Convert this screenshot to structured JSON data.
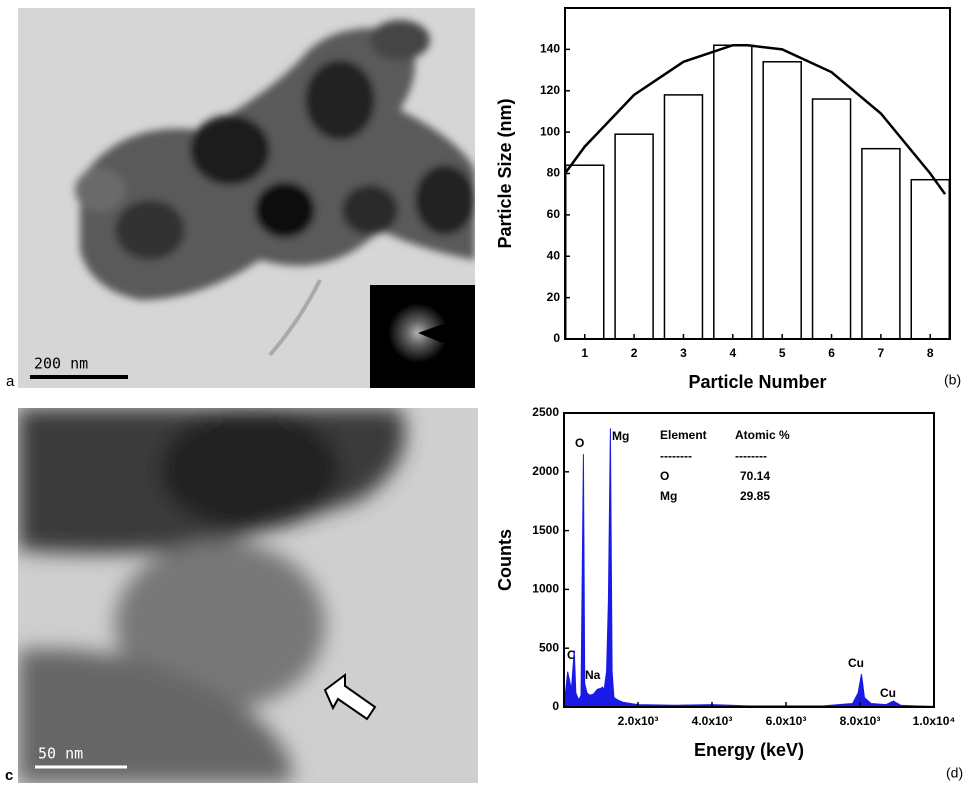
{
  "panels": [
    {
      "label": "a",
      "scale_bar": "200 nm"
    },
    {
      "label": "(b)"
    },
    {
      "label": "c",
      "scale_bar": "50 nm"
    },
    {
      "label": "(d)"
    }
  ],
  "chart_data": [
    {
      "type": "bar",
      "x_label": "Particle Number",
      "y_label": "Particle Size (nm)",
      "x": [
        1,
        2,
        3,
        4,
        5,
        6,
        7,
        8
      ],
      "values": [
        84,
        99,
        118,
        142,
        134,
        116,
        92,
        77
      ],
      "color": "#ffffff",
      "fit": {
        "x": [
          0.6,
          1,
          2,
          3,
          4,
          4.3,
          5,
          6,
          7,
          8,
          8.3
        ],
        "values": [
          80,
          93,
          118,
          134,
          142,
          142,
          140,
          129,
          109,
          80,
          70
        ]
      },
      "xlim": [
        0.6,
        8.4
      ],
      "ylim": [
        0,
        160
      ],
      "xticks": [
        1,
        2,
        3,
        4,
        5,
        6,
        7,
        8
      ],
      "yticks": [
        0,
        20,
        40,
        60,
        80,
        100,
        120,
        140
      ]
    },
    {
      "type": "area",
      "x_label": "Energy (keV)",
      "y_label": "Counts",
      "color": "#1a1ae6",
      "x": [
        0,
        100,
        200,
        277,
        320,
        400,
        460,
        525,
        560,
        620,
        700,
        800,
        900,
        1000,
        1040,
        1080,
        1150,
        1200,
        1254,
        1300,
        1350,
        1450,
        1600,
        2000,
        3000,
        4000,
        5000,
        6000,
        7000,
        7800,
        7950,
        8040,
        8120,
        8300,
        8700,
        8900,
        9100,
        9500,
        10000
      ],
      "values": [
        0,
        300,
        150,
        480,
        120,
        60,
        100,
        2150,
        200,
        120,
        100,
        110,
        150,
        160,
        170,
        140,
        300,
        900,
        2370,
        300,
        80,
        60,
        40,
        20,
        15,
        20,
        10,
        10,
        10,
        30,
        120,
        280,
        80,
        30,
        20,
        50,
        15,
        10,
        5
      ],
      "xlim": [
        0,
        10000
      ],
      "ylim": [
        0,
        2500
      ],
      "xticks": [
        {
          "value": 2000,
          "label": "2.0x10³"
        },
        {
          "value": 4000,
          "label": "4.0x10³"
        },
        {
          "value": 6000,
          "label": "6.0x10³"
        },
        {
          "value": 8000,
          "label": "8.0x10³"
        },
        {
          "value": 10000,
          "label": "1.0x10⁴"
        }
      ],
      "yticks": [
        0,
        500,
        1000,
        1500,
        2000,
        2500
      ],
      "peak_labels": [
        "C",
        "O",
        "Na",
        "Mg",
        "Cu",
        "Cu"
      ],
      "table": {
        "header": [
          "Element",
          "Atomic %"
        ],
        "rule": [
          "--------",
          "--------"
        ],
        "rows": [
          [
            "O",
            70.14
          ],
          [
            "Mg",
            29.85
          ]
        ]
      }
    }
  ]
}
